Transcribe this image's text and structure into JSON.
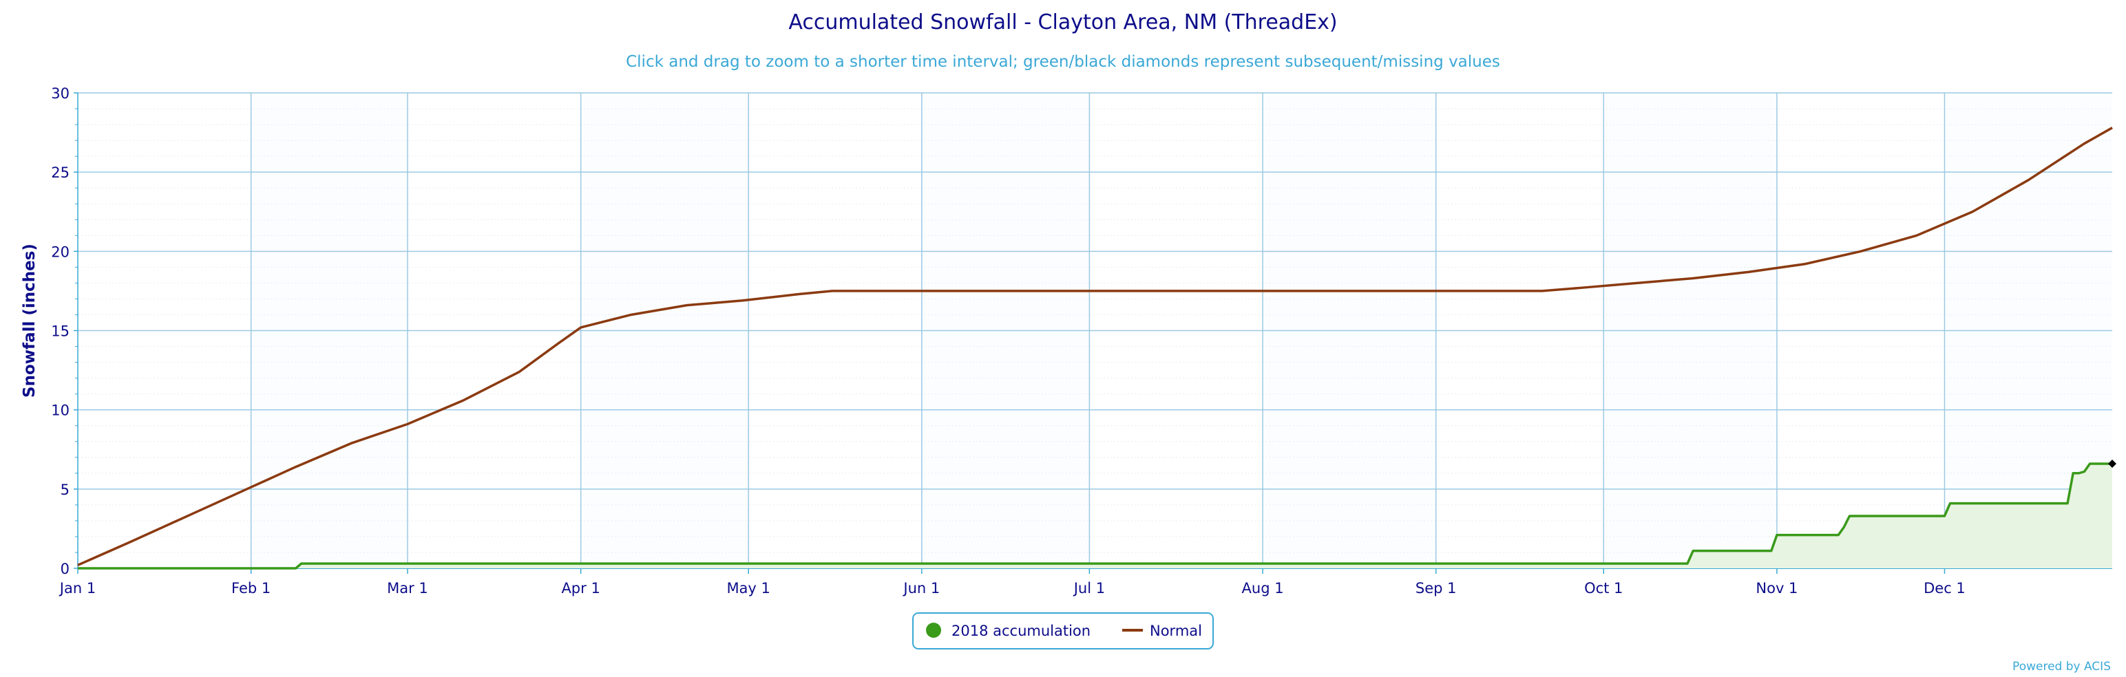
{
  "chart_data": {
    "type": "line",
    "title": "Accumulated Snowfall - Clayton Area, NM (ThreadEx)",
    "subtitle": "Click and drag to zoom to a shorter time interval; green/black diamonds represent subsequent/missing values",
    "ylabel": "Snowfall (inches)",
    "xlabel": "",
    "ylim": [
      0,
      30
    ],
    "yticks": [
      0,
      5,
      10,
      15,
      20,
      25,
      30
    ],
    "xlim": [
      1,
      365
    ],
    "x_unit": "day of year (2018)",
    "xticks": [
      {
        "label": "Jan 1",
        "day": 1
      },
      {
        "label": "Feb 1",
        "day": 32
      },
      {
        "label": "Mar 1",
        "day": 60
      },
      {
        "label": "Apr 1",
        "day": 91
      },
      {
        "label": "May 1",
        "day": 121
      },
      {
        "label": "Jun 1",
        "day": 152
      },
      {
        "label": "Jul 1",
        "day": 182
      },
      {
        "label": "Aug 1",
        "day": 213
      },
      {
        "label": "Sep 1",
        "day": 244
      },
      {
        "label": "Oct 1",
        "day": 274
      },
      {
        "label": "Nov 1",
        "day": 305
      },
      {
        "label": "Dec 1",
        "day": 335
      }
    ],
    "grid": true,
    "legend_position": "bottom-center",
    "series": [
      {
        "name": "2018 accumulation",
        "color": "#3a9a1a",
        "fill": "#e8f4e2",
        "style": "step-area",
        "points": [
          [
            1,
            0.0
          ],
          [
            40,
            0.0
          ],
          [
            41,
            0.3
          ],
          [
            289,
            0.3
          ],
          [
            290,
            1.1
          ],
          [
            304,
            1.1
          ],
          [
            305,
            2.1
          ],
          [
            316,
            2.1
          ],
          [
            317,
            2.6
          ],
          [
            318,
            3.3
          ],
          [
            335,
            3.3
          ],
          [
            336,
            4.1
          ],
          [
            357,
            4.1
          ],
          [
            358,
            6.0
          ],
          [
            359,
            6.0
          ],
          [
            360,
            6.1
          ],
          [
            361,
            6.6
          ],
          [
            365,
            6.6
          ]
        ],
        "missing_marker": {
          "day": 365,
          "value": 6.6,
          "color": "#000000"
        }
      },
      {
        "name": "Normal",
        "color": "#8b3a10",
        "style": "line",
        "points": [
          [
            1,
            0.2
          ],
          [
            10,
            1.6
          ],
          [
            20,
            3.2
          ],
          [
            30,
            4.8
          ],
          [
            40,
            6.4
          ],
          [
            50,
            7.9
          ],
          [
            60,
            9.1
          ],
          [
            70,
            10.6
          ],
          [
            80,
            12.4
          ],
          [
            87,
            14.2
          ],
          [
            91,
            15.2
          ],
          [
            100,
            16.0
          ],
          [
            110,
            16.6
          ],
          [
            120,
            16.9
          ],
          [
            130,
            17.3
          ],
          [
            136,
            17.5
          ],
          [
            150,
            17.5
          ],
          [
            200,
            17.5
          ],
          [
            250,
            17.5
          ],
          [
            263,
            17.5
          ],
          [
            270,
            17.7
          ],
          [
            280,
            18.0
          ],
          [
            290,
            18.3
          ],
          [
            300,
            18.7
          ],
          [
            310,
            19.2
          ],
          [
            320,
            20.0
          ],
          [
            330,
            21.0
          ],
          [
            340,
            22.5
          ],
          [
            350,
            24.5
          ],
          [
            360,
            26.8
          ],
          [
            365,
            27.8
          ]
        ]
      }
    ],
    "credits": "Powered by ACIS"
  }
}
